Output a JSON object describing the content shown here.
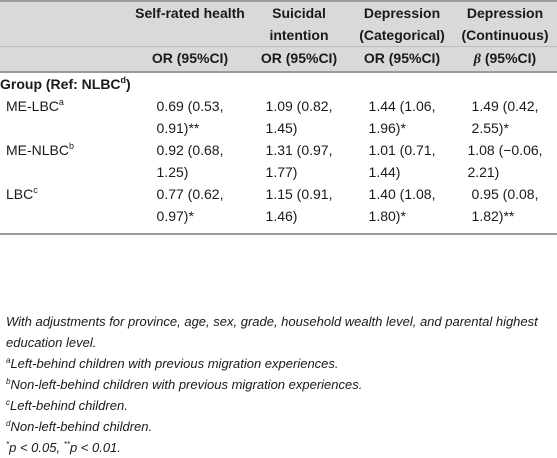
{
  "header": {
    "col1": "",
    "col2": "Self-rated health",
    "col3": "Suicidal intention",
    "col4": "Depression (Categorical)",
    "col5": "Depression (Continuous)",
    "sub2": "OR (95%CI)",
    "sub3": "OR (95%CI)",
    "sub4": "OR (95%CI)",
    "sub5_symbol": "β",
    "sub5": " (95%CI)"
  },
  "group": {
    "label": "Group (Ref: NLBC",
    "sup": "d",
    "close": ")"
  },
  "rows": [
    {
      "label": "ME-LBC",
      "sup": "a",
      "c2": [
        "0.69 (0.53,",
        "0.91)**"
      ],
      "c3": [
        "1.09 (0.82,",
        "1.45)"
      ],
      "c4": [
        "1.44 (1.06,",
        "1.96)*"
      ],
      "c5": [
        "1.49 (0.42,",
        "2.55)*"
      ]
    },
    {
      "label": "ME-NLBC",
      "sup": "b",
      "c2": [
        "0.92 (0.68,",
        "1.25)"
      ],
      "c3": [
        "1.31 (0.97,",
        "1.77)"
      ],
      "c4": [
        "1.01 (0.71,",
        "1.44)"
      ],
      "c5": [
        "1.08 (−0.06,",
        "2.21)"
      ]
    },
    {
      "label": "LBC",
      "sup": "c",
      "c2": [
        "0.77 (0.62,",
        "0.97)*"
      ],
      "c3": [
        "1.15 (0.91,",
        "1.46)"
      ],
      "c4": [
        "1.40 (1.08,",
        "1.80)*"
      ],
      "c5": [
        "0.95 (0.08,",
        "1.82)**"
      ]
    }
  ],
  "notes": {
    "adjust": "With adjustments for province, age, sex, grade, household wealth level, and parental highest education level.",
    "a_sup": "a",
    "a": "Left-behind children with previous migration experiences.",
    "b_sup": "b",
    "b": "Non-left-behind children with previous migration experiences.",
    "c_sup": "c",
    "c": "Left-behind children.",
    "d_sup": "d",
    "d": "Non-left-behind children.",
    "p_sup1": "*",
    "p1": "p < 0.05, ",
    "p_sup2": "**",
    "p2": "p < 0.01."
  }
}
